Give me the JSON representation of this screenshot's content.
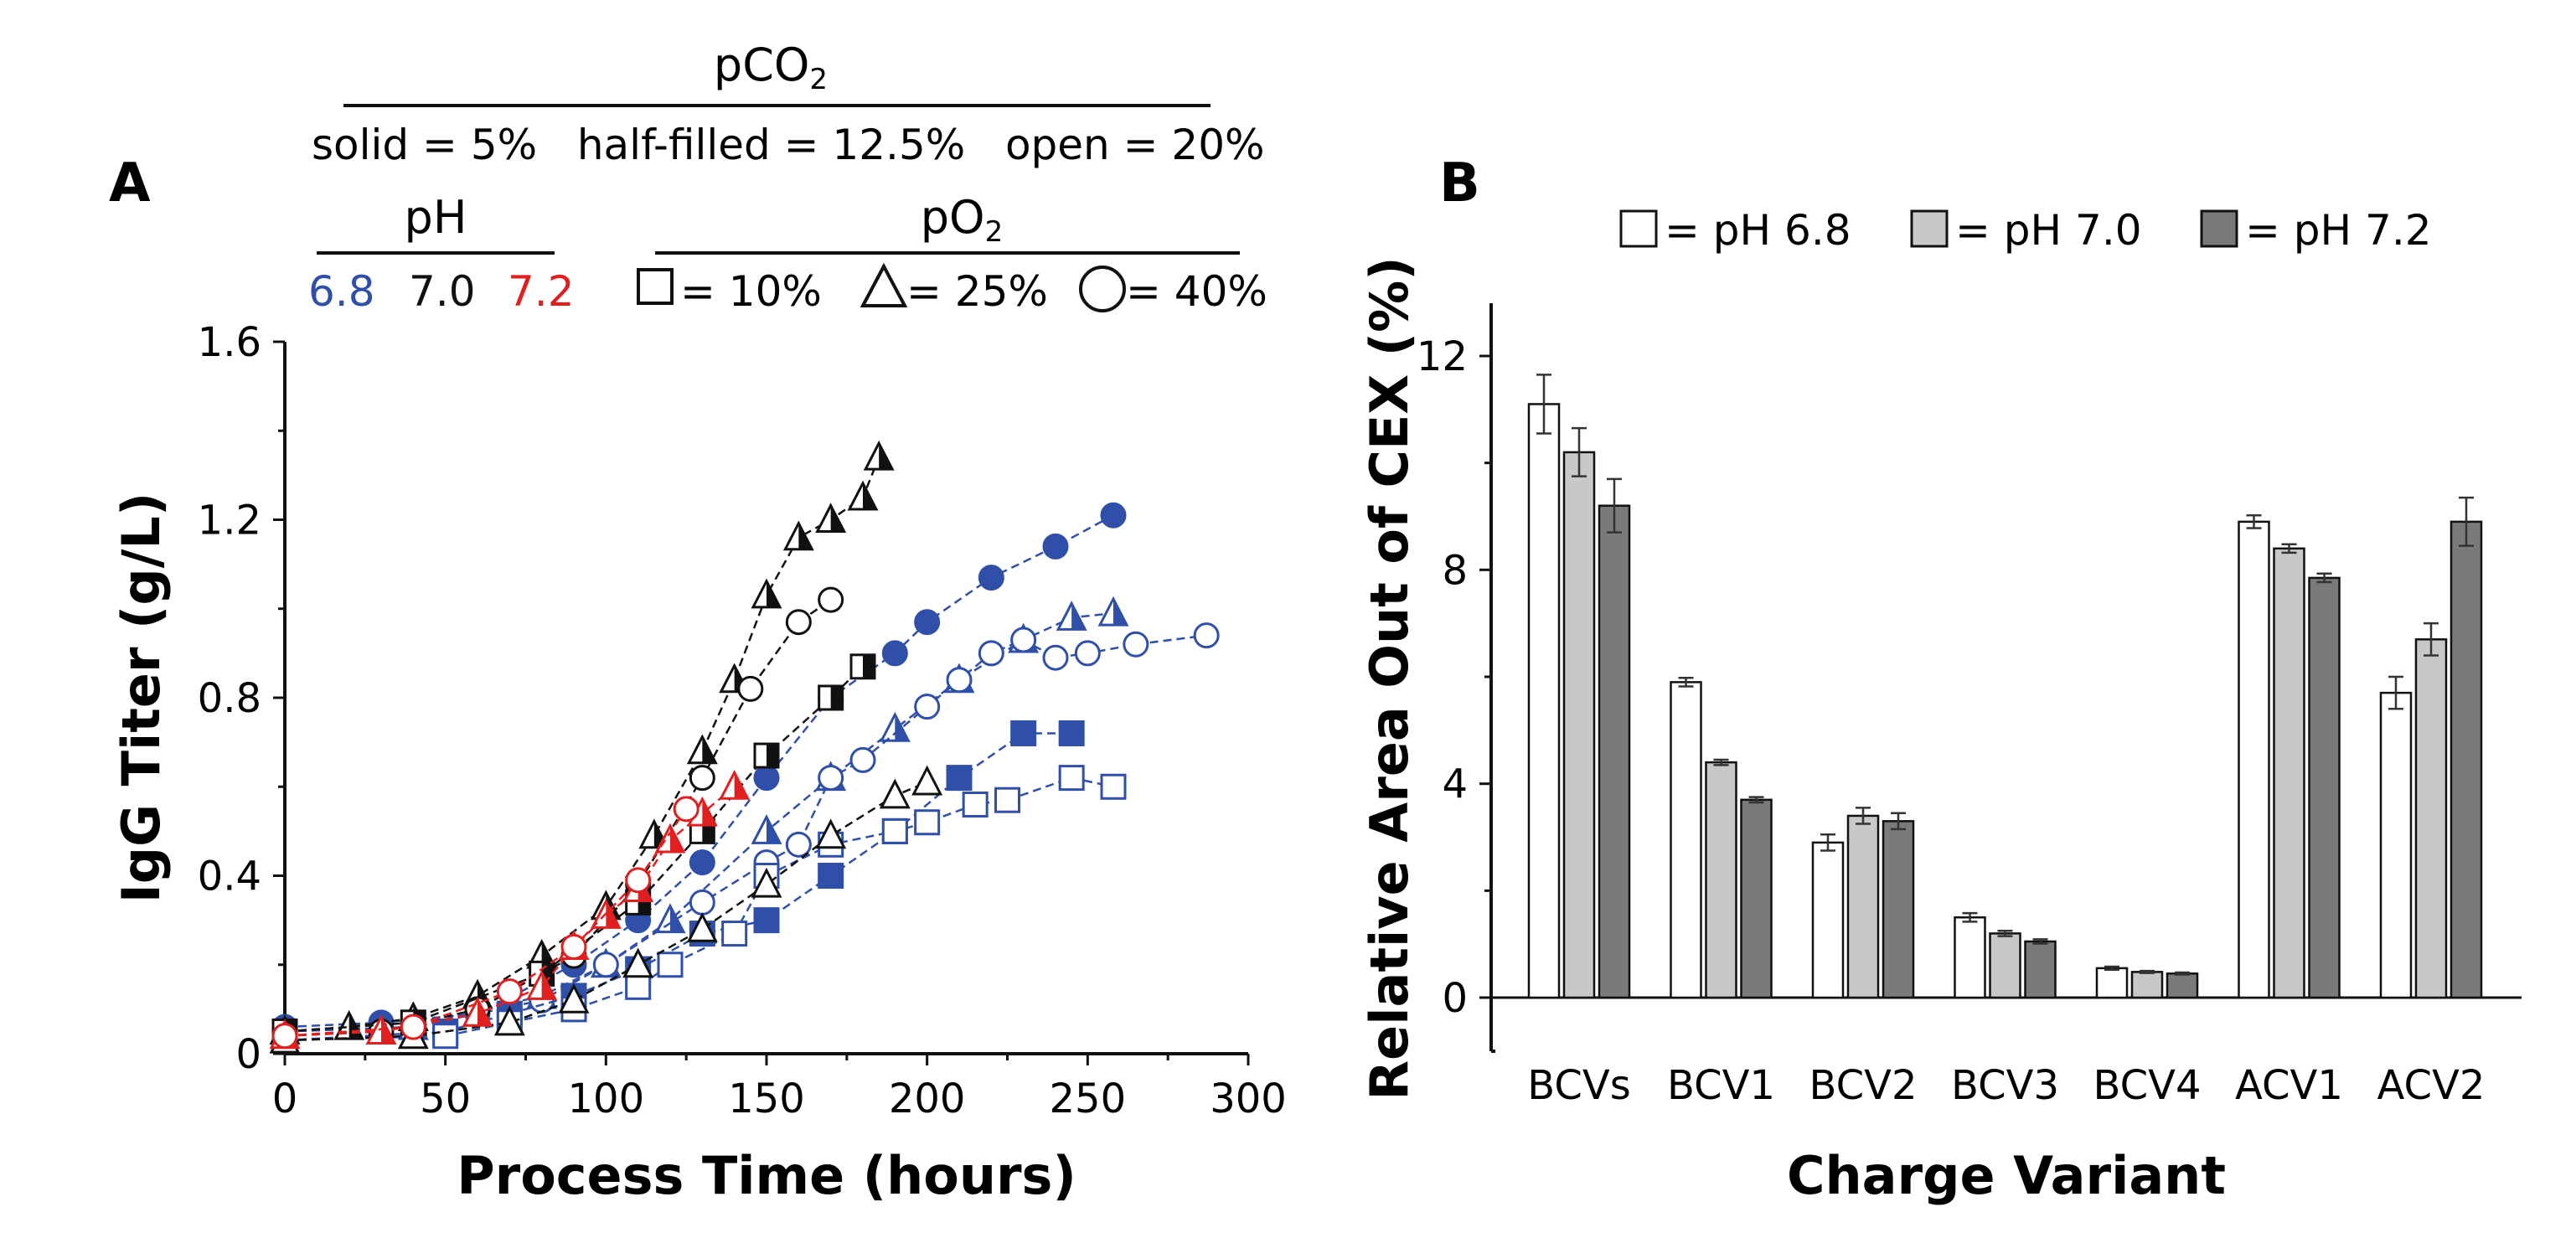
{
  "panel_a": {
    "letter": "A",
    "pco2_title": "pCO",
    "pco2_sub": "2",
    "pco2_desc": "solid = 5%   half-filled = 12.5%   open = 20%",
    "ph_title": "pH",
    "ph_values": [
      {
        "label": "6.8",
        "color": "#2f4fa8"
      },
      {
        "label": "7.0",
        "color": "#111111"
      },
      {
        "label": "7.2",
        "color": "#e02020"
      }
    ],
    "po2_title": "pO",
    "po2_sub": "2",
    "po2_items": [
      {
        "icon": "square-icon",
        "label": "= 10%"
      },
      {
        "icon": "triangle-icon",
        "label": "= 25%"
      },
      {
        "icon": "circle-icon",
        "label": "= 40%"
      }
    ]
  },
  "panel_b": {
    "letter": "B",
    "legend": [
      {
        "label": "= pH 6.8",
        "color": "#ffffff"
      },
      {
        "label": "= pH 7.0",
        "color": "#c8c8c8"
      },
      {
        "label": "= pH 7.2",
        "color": "#7a7a7a"
      }
    ]
  },
  "chart_data": [
    {
      "type": "scatter",
      "title": "",
      "xlabel": "Process Time (hours)",
      "ylabel": "IgG Titer (g/L)",
      "xlim": [
        0,
        300
      ],
      "ylim": [
        0,
        1.6
      ],
      "xticks": [
        "0",
        "50",
        "100",
        "150",
        "200",
        "250",
        "300"
      ],
      "yticks": [
        "0",
        "0.4",
        "0.8",
        "1.2",
        "1.6"
      ],
      "series": [
        {
          "color": "#2f4fa8",
          "marker": "circle",
          "fill": "solid",
          "x": [
            0,
            30,
            60,
            90,
            110,
            130,
            150,
            170,
            190,
            200,
            220,
            240,
            258
          ],
          "y": [
            0.06,
            0.07,
            0.09,
            0.2,
            0.3,
            0.43,
            0.62,
            0.8,
            0.9,
            0.97,
            1.07,
            1.14,
            1.21
          ]
        },
        {
          "color": "#2f4fa8",
          "marker": "triangle",
          "fill": "half",
          "x": [
            0,
            40,
            80,
            100,
            120,
            150,
            170,
            190,
            210,
            230,
            245,
            258
          ],
          "y": [
            0.05,
            0.06,
            0.13,
            0.2,
            0.3,
            0.5,
            0.62,
            0.73,
            0.84,
            0.93,
            0.98,
            0.99
          ]
        },
        {
          "color": "#2f4fa8",
          "marker": "circle",
          "fill": "open",
          "x": [
            0,
            40,
            80,
            100,
            130,
            150,
            160,
            170,
            180,
            200,
            210,
            220,
            230,
            240,
            250,
            265,
            287
          ],
          "y": [
            0.05,
            0.06,
            0.12,
            0.2,
            0.34,
            0.43,
            0.47,
            0.62,
            0.66,
            0.78,
            0.84,
            0.9,
            0.93,
            0.89,
            0.9,
            0.92,
            0.94
          ]
        },
        {
          "color": "#2f4fa8",
          "marker": "square",
          "fill": "solid",
          "x": [
            0,
            50,
            70,
            90,
            110,
            130,
            150,
            170,
            190,
            210,
            230,
            245
          ],
          "y": [
            0.03,
            0.05,
            0.09,
            0.13,
            0.19,
            0.27,
            0.3,
            0.4,
            0.5,
            0.62,
            0.72,
            0.72
          ]
        },
        {
          "color": "#2f4fa8",
          "marker": "square",
          "fill": "open",
          "x": [
            0,
            50,
            70,
            90,
            110,
            120,
            140,
            150,
            170,
            190,
            200,
            215,
            225,
            245,
            258
          ],
          "y": [
            0.03,
            0.04,
            0.07,
            0.1,
            0.15,
            0.2,
            0.27,
            0.4,
            0.47,
            0.5,
            0.52,
            0.56,
            0.57,
            0.62,
            0.6
          ]
        },
        {
          "color": "#111111",
          "marker": "triangle",
          "fill": "half",
          "x": [
            0,
            20,
            40,
            60,
            80,
            100,
            115,
            130,
            140,
            150,
            160,
            170,
            180,
            185
          ],
          "y": [
            0.05,
            0.06,
            0.08,
            0.13,
            0.22,
            0.33,
            0.49,
            0.68,
            0.84,
            1.03,
            1.16,
            1.2,
            1.25,
            1.34
          ]
        },
        {
          "color": "#111111",
          "marker": "circle",
          "fill": "open",
          "x": [
            0,
            30,
            60,
            90,
            110,
            130,
            145,
            160,
            170
          ],
          "y": [
            0.04,
            0.05,
            0.1,
            0.22,
            0.38,
            0.62,
            0.82,
            0.97,
            1.02
          ]
        },
        {
          "color": "#111111",
          "marker": "square",
          "fill": "half",
          "x": [
            0,
            40,
            80,
            110,
            130,
            150,
            170,
            180
          ],
          "y": [
            0.05,
            0.07,
            0.18,
            0.34,
            0.5,
            0.67,
            0.8,
            0.87
          ]
        },
        {
          "color": "#111111",
          "marker": "triangle",
          "fill": "open",
          "x": [
            0,
            40,
            70,
            90,
            110,
            130,
            150,
            170,
            190,
            200
          ],
          "y": [
            0.03,
            0.04,
            0.07,
            0.12,
            0.2,
            0.28,
            0.38,
            0.49,
            0.58,
            0.61
          ]
        },
        {
          "color": "#e02020",
          "marker": "triangle",
          "fill": "half",
          "x": [
            0,
            30,
            60,
            80,
            90,
            100,
            110,
            120,
            130,
            140
          ],
          "y": [
            0.04,
            0.05,
            0.09,
            0.15,
            0.24,
            0.31,
            0.37,
            0.48,
            0.54,
            0.6
          ]
        },
        {
          "color": "#e02020",
          "marker": "circle",
          "fill": "open",
          "x": [
            0,
            40,
            70,
            90,
            110,
            125
          ],
          "y": [
            0.04,
            0.06,
            0.14,
            0.24,
            0.39,
            0.55
          ]
        }
      ]
    },
    {
      "type": "bar",
      "title": "",
      "xlabel": "Charge Variant",
      "ylabel": "Relative Area Out of CEX (%)",
      "ylim": [
        -1,
        13
      ],
      "yticks": [
        "0",
        "4",
        "8",
        "12"
      ],
      "categories": [
        "BCVs",
        "BCV1",
        "BCV2",
        "BCV3",
        "BCV4",
        "ACV1",
        "ACV2"
      ],
      "series": [
        {
          "name": "pH 6.8",
          "color": "#ffffff",
          "values": [
            11.1,
            5.9,
            2.9,
            1.5,
            0.55,
            8.9,
            5.7
          ],
          "errors": [
            0.55,
            0.08,
            0.15,
            0.08,
            0.03,
            0.12,
            0.3
          ]
        },
        {
          "name": "pH 7.0",
          "color": "#c8c8c8",
          "values": [
            10.2,
            4.4,
            3.4,
            1.2,
            0.48,
            8.4,
            6.7
          ],
          "errors": [
            0.45,
            0.05,
            0.15,
            0.05,
            0.02,
            0.08,
            0.3
          ]
        },
        {
          "name": "pH 7.2",
          "color": "#7a7a7a",
          "values": [
            9.2,
            3.7,
            3.3,
            1.05,
            0.45,
            7.85,
            8.9
          ],
          "errors": [
            0.5,
            0.05,
            0.15,
            0.04,
            0.02,
            0.08,
            0.45
          ]
        }
      ]
    }
  ]
}
